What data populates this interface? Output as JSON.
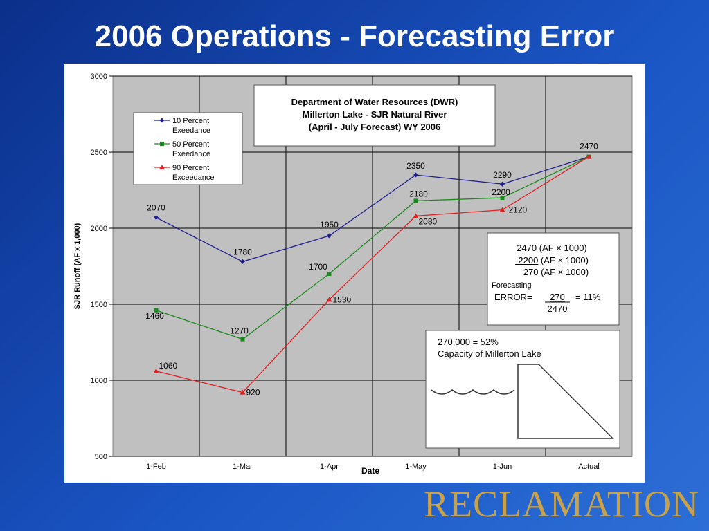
{
  "slide": {
    "title": "2006 Operations - Forecasting Error",
    "brand": "RECLAMATION"
  },
  "chart_data": {
    "type": "line",
    "title": [
      "Department of Water Resources (DWR)",
      "Millerton Lake - SJR Natural River",
      "(April - July Forecast) WY 2006"
    ],
    "xlabel": "Date",
    "ylabel": "SJR Runoff (AF x 1,000)",
    "ylim": [
      500,
      3000
    ],
    "yticks": [
      500,
      1000,
      1500,
      2000,
      2500,
      3000
    ],
    "categories": [
      "1-Feb",
      "1-Mar",
      "1-Apr",
      "1-May",
      "1-Jun",
      "Actual"
    ],
    "grid": true,
    "legend_position": "top-left",
    "series": [
      {
        "name": "10 Percent Exeedance",
        "legend": [
          "10 Percent",
          "Exeedance"
        ],
        "color": "#1f1f8f",
        "marker": "diamond",
        "values": [
          2070,
          1780,
          1950,
          2350,
          2290,
          2470
        ],
        "labels": [
          "2070",
          "1780",
          "1950",
          "2350",
          "2290",
          "2470"
        ]
      },
      {
        "name": "50 Percent Exeedance",
        "legend": [
          "50 Percent",
          "Exeedance"
        ],
        "color": "#1a8a1a",
        "marker": "square",
        "values": [
          1460,
          1270,
          1700,
          2180,
          2200,
          2470
        ],
        "labels": [
          "1460",
          "1270",
          "1700",
          "2180",
          "2200",
          ""
        ]
      },
      {
        "name": "90 Percent Exceedance",
        "legend": [
          "90 Percent",
          "Exceedance"
        ],
        "color": "#e02020",
        "marker": "triangle",
        "values": [
          1060,
          920,
          1530,
          2080,
          2120,
          2470
        ],
        "labels": [
          "1060",
          "920",
          "1530",
          "2080",
          "2120",
          ""
        ]
      }
    ],
    "annotations": {
      "error_box": {
        "line1": "2470 (AF × 1000)",
        "line2_value": "-2200",
        "line2_unit": " (AF × 1000)",
        "line3": "270 (AF × 1000)",
        "label": "Forecasting",
        "error_prefix": "ERROR=",
        "numerator": "270",
        "equals": "= 11%",
        "denominator": "2470"
      },
      "capacity_box": {
        "line1": "270,000 = 52%",
        "line2": "Capacity of Millerton Lake"
      }
    }
  }
}
